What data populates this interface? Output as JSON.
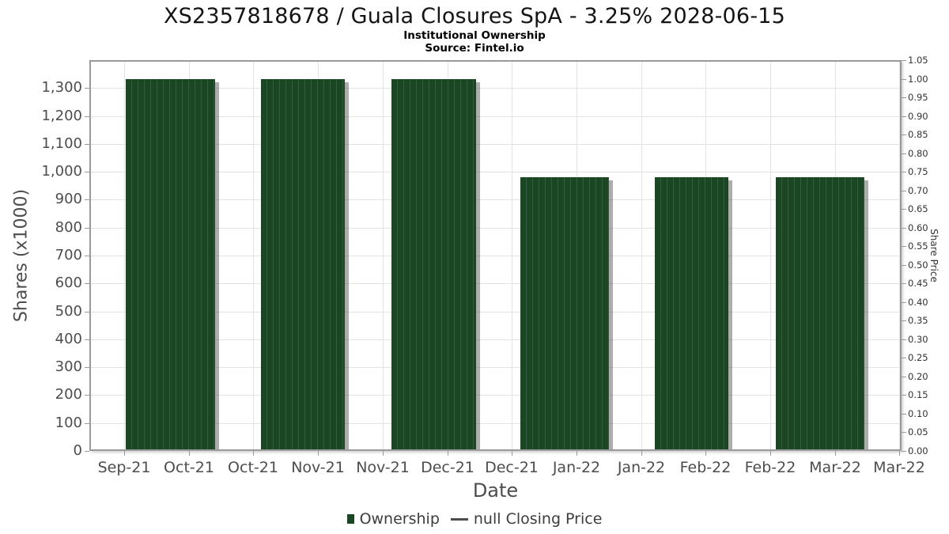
{
  "header": {
    "title": "XS2357818678 / Guala Closures SpA - 3.25% 2028-06-15",
    "subtitle": "Institutional Ownership",
    "source": "Source: Fintel.io"
  },
  "chart_data": {
    "type": "bar",
    "title": "XS2357818678 / Guala Closures SpA - 3.25% 2028-06-15",
    "subtitle": "Institutional Ownership",
    "source": "Source: Fintel.io",
    "xlabel": "Date",
    "ylabel_left": "Shares (x1000)",
    "ylabel_right": "Share Price",
    "x_tick_labels": [
      "Sep-21",
      "Oct-21",
      "Oct-21",
      "Nov-21",
      "Nov-21",
      "Dec-21",
      "Dec-21",
      "Jan-22",
      "Jan-22",
      "Feb-22",
      "Feb-22",
      "Mar-22",
      "Mar-22"
    ],
    "y_left_ticks": [
      "1,300",
      "1,200",
      "1,100",
      "1,000",
      "900",
      "800",
      "700",
      "600",
      "500",
      "400",
      "300",
      "200",
      "100",
      "0"
    ],
    "y_right_ticks": [
      "1.05",
      "1.00",
      "0.95",
      "0.90",
      "0.85",
      "0.80",
      "0.75",
      "0.70",
      "0.65",
      "0.60",
      "0.55",
      "0.50",
      "0.45",
      "0.40",
      "0.35",
      "0.30",
      "0.25",
      "0.20",
      "0.15",
      "0.10",
      "0.05",
      "0.00"
    ],
    "ylim_left": [
      0,
      1400
    ],
    "ylim_right": [
      0,
      1.05
    ],
    "grid": true,
    "legend_position": "bottom",
    "series": [
      {
        "name": "Ownership",
        "type": "bar",
        "color": "#1b4623",
        "values": [
          1332,
          1332,
          1332,
          980,
          980,
          980
        ]
      },
      {
        "name": "null Closing Price",
        "type": "line",
        "color": "#4d4d4d",
        "values": []
      }
    ],
    "bars": [
      {
        "value": 1332,
        "left_pct": 4.48,
        "width_pct": 11.0
      },
      {
        "value": 1332,
        "left_pct": 21.13,
        "width_pct": 10.32
      },
      {
        "value": 1332,
        "left_pct": 37.2,
        "width_pct": 10.42
      },
      {
        "value": 980,
        "left_pct": 53.07,
        "width_pct": 10.91
      },
      {
        "value": 980,
        "left_pct": 69.62,
        "width_pct": 9.06
      },
      {
        "value": 980,
        "left_pct": 84.52,
        "width_pct": 10.91
      }
    ]
  },
  "legend": {
    "items": [
      {
        "label": "Ownership",
        "swatch": "square",
        "color": "#1b4623"
      },
      {
        "label": "null Closing Price",
        "swatch": "line",
        "color": "#4d4d4d"
      }
    ]
  },
  "colors": {
    "bar": "#1b4623",
    "bar_stripe": "#315d38",
    "grid": "#e3e3e3",
    "axis_border": "#9a9a9a",
    "tick_text": "#4d4d4d"
  }
}
